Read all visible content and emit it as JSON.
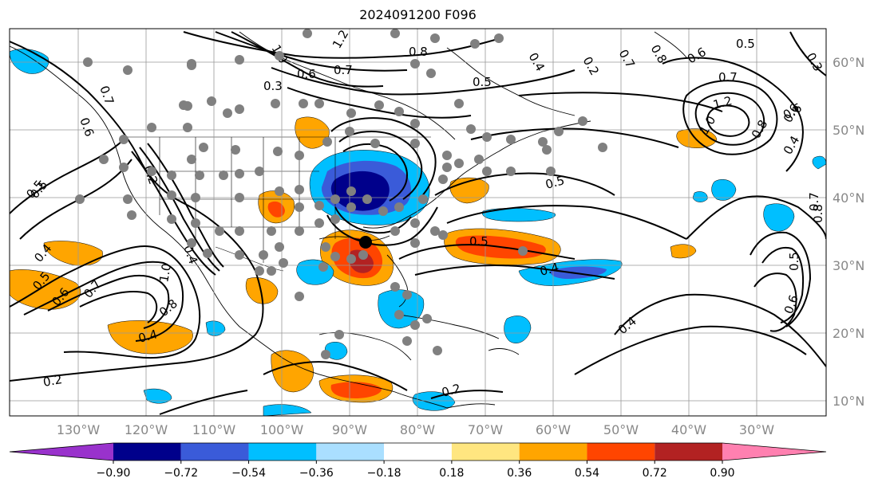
{
  "title": "2024091200 F096",
  "colors": {
    "land_border": "#000000",
    "grid": "#999999",
    "station_dot": "#808080",
    "contour": "#000000"
  },
  "map": {
    "lon_ticks": [
      "130°W",
      "120°W",
      "110°W",
      "100°W",
      "90°W",
      "80°W",
      "70°W",
      "60°W",
      "50°W",
      "40°W",
      "30°W"
    ],
    "lat_ticks": [
      "60°N",
      "50°N",
      "40°N",
      "30°N",
      "20°N",
      "10°N"
    ]
  },
  "contour_labels": [
    "1.0",
    "1.2",
    "0.8",
    "0.7",
    "0.6",
    "0.5",
    "0.3",
    "0.4",
    "0.2",
    "0.7",
    "0.8",
    "0.6",
    "0.5",
    "0.3",
    "1.2",
    "1.0",
    "0.8",
    "0.6",
    "0.4",
    "0.5",
    "0.5",
    "0.4",
    "0.4",
    "0.2",
    "0.5",
    "0.7",
    "0.6",
    "0.7",
    "0.8",
    "0.6",
    "0.5",
    "0.8",
    "0.7",
    "0.5",
    "0.6",
    "0.4",
    "0.2",
    "1.0",
    "0.4",
    "0.5",
    "0.7",
    "0.6",
    "0.4",
    "0.2"
  ],
  "colorbar": {
    "colors": [
      "#9932cc",
      "#00008b",
      "#3a5bd9",
      "#00bfff",
      "#aadfff",
      "#ffffff",
      "#ffe680",
      "#ffa500",
      "#ff4500",
      "#b22222",
      "#ff80b0"
    ],
    "tick_labels": [
      "−0.90",
      "−0.72",
      "−0.54",
      "−0.36",
      "−0.18",
      "0.18",
      "0.36",
      "0.54",
      "0.72",
      "0.90"
    ]
  }
}
